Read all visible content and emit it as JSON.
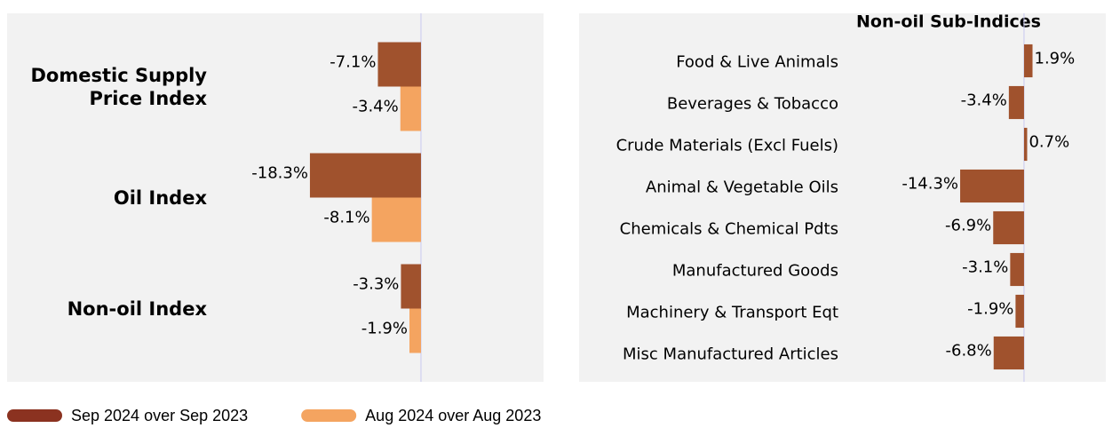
{
  "chart_data": [
    {
      "type": "bar",
      "orientation": "horizontal",
      "legend": "bottom-left",
      "categories": [
        "Domestic Supply Price Index",
        "Oil Index",
        "Non-oil Index"
      ],
      "series": [
        {
          "name": "Sep 2024 over Sep 2023",
          "color": "#a0522d",
          "legend_color": "#8b3220",
          "values": [
            -7.1,
            -18.3,
            -3.3
          ],
          "value_labels": [
            "-7.1%",
            "-18.3%",
            "-3.3%"
          ]
        },
        {
          "name": "Aug 2024 over Aug 2023",
          "color": "#f4a460",
          "legend_color": "#f4a460",
          "values": [
            -3.4,
            -8.1,
            -1.9
          ],
          "value_labels": [
            "-3.4%",
            "-8.1%",
            "-1.9%"
          ]
        }
      ],
      "xlim": [
        -68.2,
        20.2
      ]
    },
    {
      "type": "bar",
      "orientation": "horizontal",
      "title": "Non-oil Sub-Indices",
      "categories": [
        "Food & Live Animals",
        "Beverages & Tobacco",
        "Crude Materials (Excl Fuels)",
        "Animal & Vegetable Oils",
        "Chemicals & Chemical Pdts",
        "Manufactured Goods",
        "Machinery & Transport Eqt",
        "Misc Manufactured Articles"
      ],
      "values": [
        1.9,
        -3.4,
        0.7,
        -14.3,
        -6.9,
        -3.1,
        -1.9,
        -6.8
      ],
      "value_labels": [
        "1.9%",
        "-3.4%",
        "0.7%",
        "-14.3%",
        "-6.9%",
        "-3.1%",
        "-1.9%",
        "-6.8%"
      ],
      "color": "#a0522d",
      "xlim": [
        -99.6,
        18.3
      ]
    }
  ]
}
